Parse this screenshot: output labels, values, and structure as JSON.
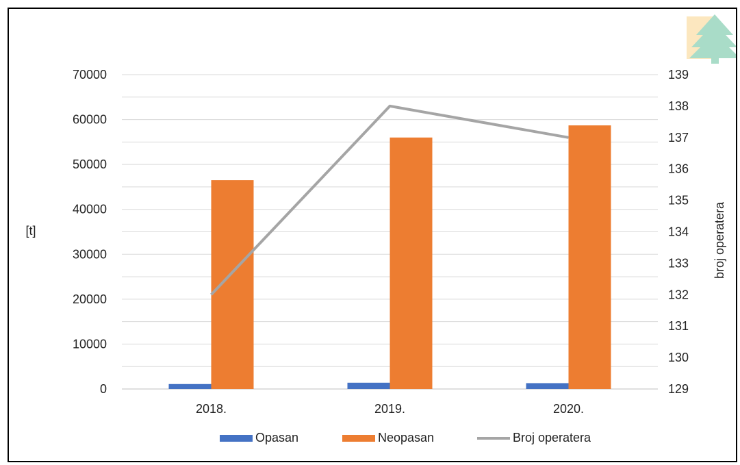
{
  "chart_data": {
    "type": "bar",
    "categories": [
      "2018.",
      "2019.",
      "2020."
    ],
    "series": [
      {
        "name": "Opasan",
        "kind": "bar",
        "axis": "left",
        "color": "#4472C4",
        "values": [
          1100,
          1400,
          1300
        ]
      },
      {
        "name": "Neopasan",
        "kind": "bar",
        "axis": "left",
        "color": "#ED7D31",
        "values": [
          46500,
          56000,
          58700
        ]
      },
      {
        "name": "Broj operatera",
        "kind": "line",
        "axis": "right",
        "color": "#A5A5A5",
        "values": [
          132,
          138,
          137
        ]
      }
    ],
    "ylabel": "[t]",
    "y2label": "broj operatera",
    "ylim": [
      0,
      70000
    ],
    "y2lim": [
      129,
      139
    ],
    "y_ticks": [
      "0",
      "10000",
      "20000",
      "30000",
      "40000",
      "50000",
      "60000",
      "70000"
    ],
    "y2_ticks": [
      "129",
      "130",
      "131",
      "132",
      "133",
      "134",
      "135",
      "136",
      "137",
      "138",
      "139"
    ],
    "grid": true,
    "legend_position": "bottom"
  },
  "logo": {
    "name": "tree-logo-icon"
  }
}
